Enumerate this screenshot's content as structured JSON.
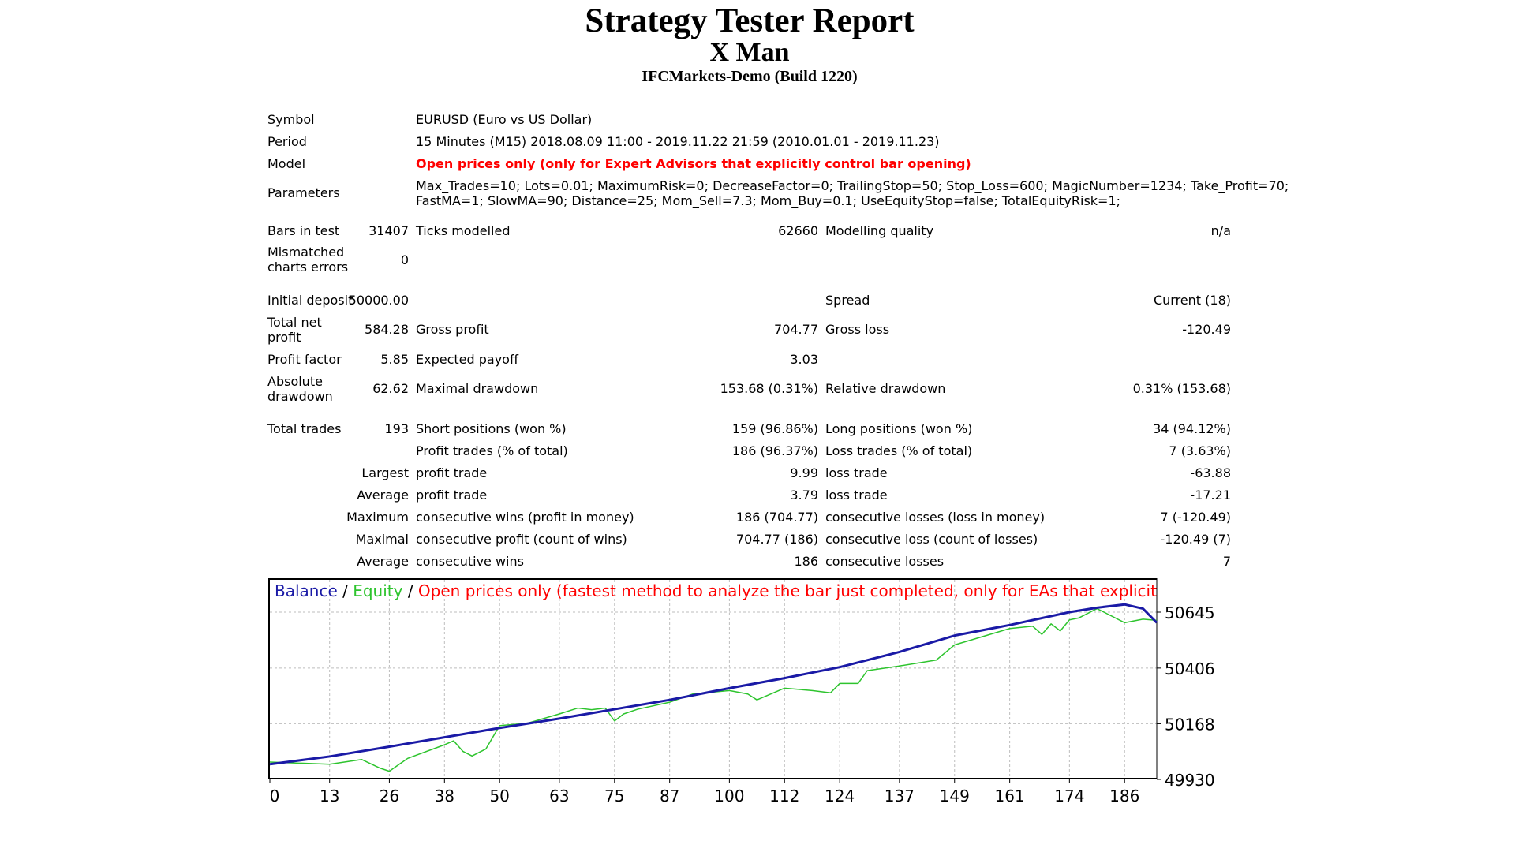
{
  "header": {
    "title": "Strategy Tester Report",
    "ea_name": "X Man",
    "server": "IFCMarkets-Demo (Build 1220)"
  },
  "info": {
    "symbol_label": "Symbol",
    "symbol": "EURUSD (Euro vs US Dollar)",
    "period_label": "Period",
    "period": "15 Minutes (M15) 2018.08.09 11:00 - 2019.11.22 21:59 (2010.01.01 - 2019.11.23)",
    "model_label": "Model",
    "model": "Open prices only (only for Expert Advisors that explicitly control bar opening)",
    "parameters_label": "Parameters",
    "parameters_line1": "Max_Trades=10; Lots=0.01; MaximumRisk=0; DecreaseFactor=0; TrailingStop=50; Stop_Loss=600; MagicNumber=1234; Take_Profit=70;",
    "parameters_line2": "FastMA=1; SlowMA=90; Distance=25; Mom_Sell=7.3; Mom_Buy=0.1; UseEquityStop=false; TotalEquityRisk=1;"
  },
  "quality": {
    "bars_label": "Bars in test",
    "bars": "31407",
    "ticks_label": "Ticks modelled",
    "ticks": "62660",
    "quality_label": "Modelling quality",
    "quality": "n/a",
    "mismatch_label": "Mismatched charts errors",
    "mismatch": "0"
  },
  "results": {
    "initial_deposit_label": "Initial deposit",
    "initial_deposit": "50000.00",
    "spread_label": "Spread",
    "spread": "Current (18)",
    "net_profit_label": "Total net profit",
    "net_profit": "584.28",
    "gross_profit_label": "Gross profit",
    "gross_profit": "704.77",
    "gross_loss_label": "Gross loss",
    "gross_loss": "-120.49",
    "profit_factor_label": "Profit factor",
    "profit_factor": "5.85",
    "expected_payoff_label": "Expected payoff",
    "expected_payoff": "3.03",
    "abs_drawdown_label": "Absolute drawdown",
    "abs_drawdown": "62.62",
    "max_drawdown_label": "Maximal drawdown",
    "max_drawdown": "153.68 (0.31%)",
    "rel_drawdown_label": "Relative drawdown",
    "rel_drawdown": "0.31% (153.68)"
  },
  "trades": {
    "total_label": "Total trades",
    "total": "193",
    "short_label": "Short positions (won %)",
    "short": "159 (96.86%)",
    "long_label": "Long positions (won %)",
    "long": "34 (94.12%)",
    "profit_trades_label": "Profit trades (% of total)",
    "profit_trades": "186 (96.37%)",
    "loss_trades_label": "Loss trades (% of total)",
    "loss_trades": "7 (3.63%)",
    "largest_label": "Largest",
    "largest_profit_label": "profit trade",
    "largest_profit": "9.99",
    "largest_loss_label": "loss trade",
    "largest_loss": "-63.88",
    "average_label": "Average",
    "average_profit_label": "profit trade",
    "average_profit": "3.79",
    "average_loss_label": "loss trade",
    "average_loss": "-17.21",
    "maximum_label": "Maximum",
    "max_wins_label": "consecutive wins (profit in money)",
    "max_wins": "186 (704.77)",
    "max_losses_label": "consecutive losses (loss in money)",
    "max_losses": "7 (-120.49)",
    "maximal_label": "Maximal",
    "maximal_profit_label": "consecutive profit (count of wins)",
    "maximal_profit": "704.77 (186)",
    "maximal_loss_label": "consecutive loss (count of losses)",
    "maximal_loss": "-120.49 (7)",
    "avg_consec_label": "Average",
    "avg_consec_wins_label": "consecutive wins",
    "avg_consec_wins": "186",
    "avg_consec_losses_label": "consecutive losses",
    "avg_consec_losses": "7"
  },
  "colors": {
    "balance": "#1a1aa6",
    "equity": "#2ec42e",
    "model_text": "#ff0000",
    "grid": "#bdbdbd"
  },
  "chart_data": {
    "type": "line",
    "legend_balance": "Balance",
    "legend_sep1": " / ",
    "legend_equity": "Equity",
    "legend_sep2": " / ",
    "legend_model": "Open prices only (fastest method to analyze the bar just completed, only for EAs that explicitly control bar opening)",
    "x_ticks": [
      0,
      13,
      26,
      38,
      50,
      63,
      75,
      87,
      100,
      112,
      124,
      137,
      149,
      161,
      174,
      186
    ],
    "y_ticks": [
      49930,
      50168,
      50406,
      50645
    ],
    "xlim": [
      0,
      193
    ],
    "ylim": [
      49930,
      50710
    ],
    "series": [
      {
        "name": "Balance",
        "x": [
          0,
          13,
          26,
          38,
          50,
          63,
          75,
          87,
          100,
          112,
          124,
          137,
          149,
          161,
          174,
          180,
          186,
          190,
          193
        ],
        "y": [
          49995,
          50028,
          50070,
          50110,
          50150,
          50190,
          50230,
          50270,
          50320,
          50363,
          50410,
          50475,
          50545,
          50590,
          50645,
          50664,
          50678,
          50660,
          50600
        ]
      },
      {
        "name": "Equity",
        "x": [
          0,
          13,
          20,
          24,
          26,
          30,
          38,
          40,
          42,
          44,
          47,
          50,
          56,
          63,
          67,
          70,
          73,
          75,
          77,
          80,
          87,
          92,
          100,
          104,
          106,
          112,
          118,
          122,
          124,
          128,
          130,
          137,
          145,
          149,
          155,
          161,
          166,
          168,
          170,
          172,
          174,
          176,
          180,
          186,
          190,
          193
        ],
        "y": [
          50004,
          49995,
          50015,
          49978,
          49965,
          50020,
          50078,
          50095,
          50050,
          50030,
          50060,
          50160,
          50170,
          50210,
          50235,
          50228,
          50235,
          50180,
          50210,
          50230,
          50260,
          50295,
          50310,
          50295,
          50270,
          50320,
          50310,
          50300,
          50340,
          50340,
          50395,
          50415,
          50440,
          50505,
          50540,
          50575,
          50585,
          50550,
          50595,
          50565,
          50612,
          50620,
          50660,
          50600,
          50615,
          50610
        ]
      }
    ]
  }
}
